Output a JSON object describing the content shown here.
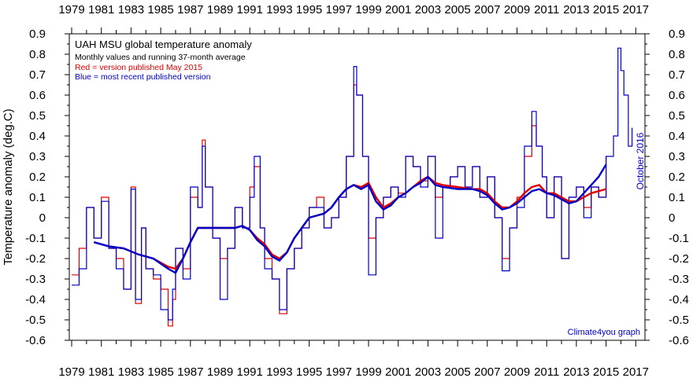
{
  "chart_data": {
    "type": "line",
    "title": "UAH MSU global temperature anomaly",
    "subtitle": "Monthly values and running 37-month average",
    "ylabel": "Temperature anomaly (deg.C)",
    "xlabel": "",
    "notes": [
      {
        "text": "Red = version published May 2015",
        "color": "#e00000"
      },
      {
        "text": "Blue = most recent published version",
        "color": "#0000c8"
      }
    ],
    "date_label": "October 2016",
    "credit": "Climate4you graph",
    "xlim": [
      1979,
      2017
    ],
    "ylim": [
      -0.6,
      0.9
    ],
    "x_tick_labels": [
      "1979",
      "1981",
      "1983",
      "1985",
      "1987",
      "1989",
      "1991",
      "1993",
      "1995",
      "1997",
      "1999",
      "2001",
      "2003",
      "2005",
      "2007",
      "2009",
      "2011",
      "2013",
      "2015",
      "2017"
    ],
    "y_tick_labels": [
      "0.9",
      "0.8",
      "0.7",
      "0.6",
      "0.5",
      "0.4",
      "0.3",
      "0.2",
      "0.1",
      "0",
      "-0.1",
      "-0.2",
      "-0.3",
      "-0.4",
      "-0.5",
      "-0.6"
    ],
    "grid": false,
    "colors": {
      "red": "#e00000",
      "blue": "#0000c8",
      "axis": "#000000"
    },
    "series": [
      {
        "name": "Red = version published May 2015",
        "style": "monthly",
        "x": [
          1979.0,
          1979.5,
          1980.0,
          1980.5,
          1981.0,
          1981.5,
          1982.0,
          1982.5,
          1983.0,
          1983.3,
          1983.7,
          1984.0,
          1984.5,
          1985.0,
          1985.5,
          1985.8,
          1986.0,
          1986.5,
          1987.0,
          1987.5,
          1987.8,
          1988.0,
          1988.5,
          1989.0,
          1989.5,
          1990.0,
          1990.5,
          1991.0,
          1991.3,
          1991.7,
          1992.0,
          1992.5,
          1993.0,
          1993.5,
          1994.0,
          1994.5,
          1995.0,
          1995.5,
          1996.0,
          1996.5,
          1997.0,
          1997.5,
          1998.0,
          1998.2,
          1998.6,
          1999.0,
          1999.5,
          2000.0,
          2000.5,
          2001.0,
          2001.5,
          2002.0,
          2002.5,
          2003.0,
          2003.5,
          2004.0,
          2004.5,
          2005.0,
          2005.5,
          2006.0,
          2006.5,
          2007.0,
          2007.5,
          2008.0,
          2008.5,
          2009.0,
          2009.5,
          2010.0,
          2010.3,
          2010.7,
          2011.0,
          2011.5,
          2012.0,
          2012.5,
          2013.0,
          2013.5,
          2014.0,
          2014.5,
          2015.0
        ],
        "values": [
          -0.28,
          -0.15,
          0.05,
          -0.1,
          0.1,
          -0.15,
          -0.2,
          -0.35,
          0.15,
          -0.42,
          -0.05,
          -0.25,
          -0.3,
          -0.35,
          -0.53,
          -0.4,
          -0.15,
          -0.25,
          0.1,
          0.05,
          0.38,
          0.15,
          -0.1,
          -0.2,
          -0.15,
          0.05,
          -0.05,
          0.15,
          0.25,
          -0.05,
          -0.2,
          -0.3,
          -0.47,
          -0.25,
          -0.15,
          -0.05,
          0.05,
          0.1,
          -0.05,
          0.0,
          0.1,
          0.3,
          0.65,
          0.6,
          0.3,
          -0.1,
          0.0,
          0.1,
          0.15,
          0.12,
          0.3,
          0.25,
          0.18,
          0.3,
          0.1,
          0.15,
          0.2,
          0.25,
          0.15,
          0.25,
          0.1,
          0.2,
          0.0,
          -0.2,
          -0.05,
          0.1,
          0.3,
          0.45,
          0.35,
          0.2,
          0.0,
          0.2,
          -0.2,
          0.1,
          0.15,
          0.05,
          0.15,
          0.1,
          0.3
        ]
      },
      {
        "name": "Blue = most recent published version",
        "style": "monthly",
        "x": [
          1979.0,
          1979.5,
          1980.0,
          1980.5,
          1981.0,
          1981.5,
          1982.0,
          1982.5,
          1983.0,
          1983.3,
          1983.7,
          1984.0,
          1984.5,
          1985.0,
          1985.5,
          1985.8,
          1986.0,
          1986.5,
          1987.0,
          1987.5,
          1987.8,
          1988.0,
          1988.5,
          1989.0,
          1989.5,
          1990.0,
          1990.5,
          1991.0,
          1991.3,
          1991.7,
          1992.0,
          1992.5,
          1993.0,
          1993.5,
          1994.0,
          1994.5,
          1995.0,
          1995.5,
          1996.0,
          1996.5,
          1997.0,
          1997.5,
          1998.0,
          1998.2,
          1998.6,
          1999.0,
          1999.5,
          2000.0,
          2000.5,
          2001.0,
          2001.5,
          2002.0,
          2002.5,
          2003.0,
          2003.5,
          2004.0,
          2004.5,
          2005.0,
          2005.5,
          2006.0,
          2006.5,
          2007.0,
          2007.5,
          2008.0,
          2008.5,
          2009.0,
          2009.5,
          2010.0,
          2010.3,
          2010.7,
          2011.0,
          2011.5,
          2012.0,
          2012.5,
          2013.0,
          2013.5,
          2014.0,
          2014.5,
          2015.0,
          2015.5,
          2015.8,
          2016.0,
          2016.2,
          2016.5,
          2016.75
        ],
        "values": [
          -0.33,
          -0.25,
          0.05,
          -0.1,
          0.08,
          -0.15,
          -0.25,
          -0.35,
          0.14,
          -0.4,
          -0.05,
          -0.25,
          -0.28,
          -0.45,
          -0.5,
          -0.35,
          -0.15,
          -0.3,
          0.15,
          0.05,
          0.35,
          0.15,
          -0.1,
          -0.4,
          -0.15,
          0.05,
          -0.05,
          0.1,
          0.3,
          -0.05,
          -0.25,
          -0.3,
          -0.45,
          -0.25,
          -0.15,
          -0.05,
          0.05,
          0.05,
          -0.05,
          0.0,
          0.1,
          0.3,
          0.74,
          0.6,
          0.3,
          -0.28,
          0.0,
          0.1,
          0.15,
          0.1,
          0.3,
          0.25,
          0.15,
          0.3,
          -0.1,
          0.15,
          0.2,
          0.25,
          0.15,
          0.25,
          0.1,
          0.2,
          0.0,
          -0.26,
          -0.05,
          0.05,
          0.35,
          0.52,
          0.35,
          0.2,
          0.0,
          0.2,
          -0.2,
          0.1,
          0.15,
          0.0,
          0.15,
          0.1,
          0.3,
          0.4,
          0.83,
          0.72,
          0.6,
          0.35,
          0.44
        ]
      },
      {
        "name": "Red = version published May 2015",
        "style": "average",
        "x": [
          1980.5,
          1981.5,
          1982.5,
          1983.5,
          1984.5,
          1985.5,
          1986.0,
          1986.5,
          1987.0,
          1987.5,
          1988.0,
          1989.0,
          1990.0,
          1990.5,
          1991.0,
          1991.5,
          1992.0,
          1992.5,
          1993.0,
          1993.5,
          1994.0,
          1994.5,
          1995.0,
          1995.5,
          1996.0,
          1996.5,
          1997.0,
          1997.5,
          1998.0,
          1998.5,
          1999.0,
          1999.5,
          2000.0,
          2000.5,
          2001.0,
          2001.5,
          2002.0,
          2002.5,
          2003.0,
          2003.5,
          2004.0,
          2005.0,
          2006.0,
          2006.5,
          2007.0,
          2007.5,
          2008.0,
          2008.5,
          2009.0,
          2009.5,
          2010.0,
          2010.5,
          2011.0,
          2011.5,
          2012.0,
          2012.5,
          2013.0,
          2013.5,
          2014.0,
          2014.5,
          2015.0
        ],
        "values": [
          -0.12,
          -0.14,
          -0.15,
          -0.18,
          -0.2,
          -0.24,
          -0.25,
          -0.2,
          -0.12,
          -0.05,
          -0.05,
          -0.05,
          -0.05,
          -0.04,
          -0.06,
          -0.1,
          -0.13,
          -0.18,
          -0.2,
          -0.17,
          -0.1,
          -0.05,
          0.0,
          0.01,
          0.02,
          0.05,
          0.1,
          0.14,
          0.16,
          0.15,
          0.17,
          0.1,
          0.05,
          0.07,
          0.1,
          0.12,
          0.15,
          0.18,
          0.2,
          0.17,
          0.16,
          0.15,
          0.14,
          0.14,
          0.12,
          0.08,
          0.05,
          0.05,
          0.08,
          0.12,
          0.15,
          0.16,
          0.12,
          0.12,
          0.1,
          0.08,
          0.08,
          0.1,
          0.12,
          0.13,
          0.14
        ]
      },
      {
        "name": "Blue = most recent published version",
        "style": "average",
        "x": [
          1980.5,
          1981.5,
          1982.5,
          1983.5,
          1984.5,
          1985.5,
          1986.0,
          1986.5,
          1987.0,
          1987.5,
          1988.0,
          1989.0,
          1990.0,
          1990.5,
          1991.0,
          1991.5,
          1992.0,
          1992.5,
          1993.0,
          1993.5,
          1994.0,
          1994.5,
          1995.0,
          1995.5,
          1996.0,
          1996.5,
          1997.0,
          1997.5,
          1998.0,
          1998.5,
          1999.0,
          1999.5,
          2000.0,
          2000.5,
          2001.0,
          2001.5,
          2002.0,
          2002.5,
          2003.0,
          2003.5,
          2004.0,
          2005.0,
          2006.0,
          2006.5,
          2007.0,
          2007.5,
          2008.0,
          2008.5,
          2009.0,
          2009.5,
          2010.0,
          2010.5,
          2011.0,
          2011.5,
          2012.0,
          2012.5,
          2013.0,
          2013.5,
          2014.0,
          2014.5,
          2015.0
        ],
        "values": [
          -0.12,
          -0.14,
          -0.15,
          -0.18,
          -0.2,
          -0.25,
          -0.27,
          -0.2,
          -0.12,
          -0.05,
          -0.05,
          -0.05,
          -0.05,
          -0.04,
          -0.06,
          -0.11,
          -0.14,
          -0.19,
          -0.21,
          -0.17,
          -0.1,
          -0.05,
          0.0,
          0.01,
          0.02,
          0.05,
          0.1,
          0.14,
          0.16,
          0.14,
          0.16,
          0.08,
          0.04,
          0.06,
          0.1,
          0.12,
          0.15,
          0.17,
          0.2,
          0.16,
          0.15,
          0.14,
          0.14,
          0.13,
          0.11,
          0.07,
          0.04,
          0.05,
          0.07,
          0.1,
          0.13,
          0.14,
          0.12,
          0.11,
          0.09,
          0.07,
          0.08,
          0.12,
          0.16,
          0.2,
          0.26
        ]
      }
    ]
  }
}
